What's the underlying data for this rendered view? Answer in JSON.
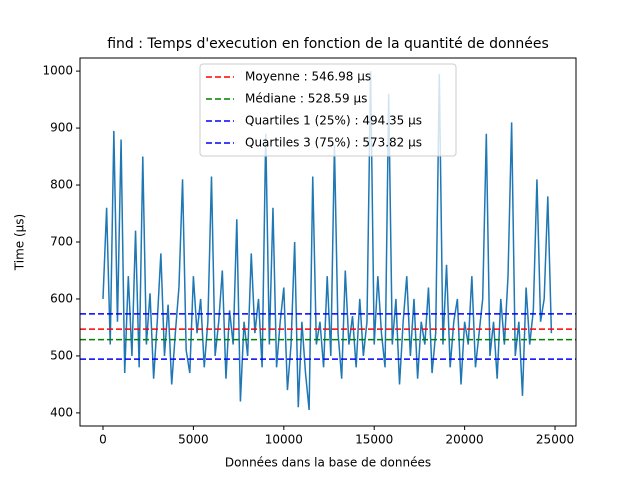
{
  "chart_data": {
    "type": "line",
    "title": "find : Temps d'execution en fonction de la quantité de données",
    "x_label": "Données dans la base de données",
    "y_label": "Time (µs)",
    "xlim": [
      -1272,
      26160
    ],
    "ylim": [
      377,
      1023
    ],
    "xticks": [
      0,
      5000,
      10000,
      15000,
      20000,
      25000
    ],
    "yticks": [
      400,
      500,
      600,
      700,
      800,
      900,
      1000
    ],
    "legend": "upper center",
    "series": [
      {
        "color": "#1f77b4",
        "x": [
          0,
          200,
          400,
          600,
          800,
          1000,
          1200,
          1400,
          1600,
          1800,
          2000,
          2200,
          2400,
          2600,
          2800,
          3000,
          3200,
          3400,
          3600,
          3800,
          4000,
          4200,
          4400,
          4600,
          4800,
          5000,
          5200,
          5400,
          5600,
          5800,
          6000,
          6200,
          6400,
          6600,
          6800,
          7000,
          7200,
          7400,
          7600,
          7800,
          8000,
          8200,
          8400,
          8600,
          8800,
          9000,
          9200,
          9400,
          9600,
          9800,
          10000,
          10200,
          10400,
          10600,
          10800,
          11000,
          11200,
          11400,
          11600,
          11800,
          12000,
          12200,
          12400,
          12600,
          12800,
          13000,
          13200,
          13400,
          13600,
          13800,
          14000,
          14200,
          14400,
          14600,
          14800,
          15000,
          15200,
          15400,
          15600,
          15800,
          16000,
          16200,
          16400,
          16600,
          16800,
          17000,
          17200,
          17400,
          17600,
          17800,
          18000,
          18200,
          18400,
          18600,
          18800,
          19000,
          19200,
          19400,
          19600,
          19800,
          20000,
          20200,
          20400,
          20600,
          20800,
          21000,
          21200,
          21400,
          21600,
          21800,
          22000,
          22200,
          22400,
          22600,
          22800,
          23000,
          23200,
          23400,
          23600,
          23800,
          24000,
          24200,
          24400,
          24600,
          24800
        ],
        "values": [
          600,
          760,
          520,
          895,
          560,
          880,
          470,
          640,
          500,
          720,
          480,
          850,
          520,
          610,
          460,
          560,
          680,
          500,
          590,
          450,
          540,
          620,
          810,
          510,
          470,
          640,
          540,
          600,
          480,
          560,
          815,
          500,
          560,
          650,
          460,
          580,
          520,
          740,
          420,
          560,
          500,
          680,
          540,
          600,
          480,
          890,
          520,
          760,
          480,
          560,
          620,
          440,
          520,
          700,
          410,
          560,
          470,
          405,
          815,
          520,
          560,
          480,
          640,
          500,
          870,
          540,
          460,
          650,
          520,
          570,
          480,
          600,
          500,
          560,
          1000,
          520,
          640,
          540,
          480,
          960,
          520,
          600,
          450,
          560,
          640,
          500,
          600,
          460,
          560,
          520,
          620,
          470,
          540,
          995,
          520,
          660,
          480,
          560,
          600,
          450,
          560,
          520,
          640,
          480,
          540,
          600,
          890,
          500,
          560,
          460,
          600,
          520,
          640,
          910,
          500,
          560,
          430,
          620,
          520,
          580,
          810,
          560,
          600,
          780,
          540
        ]
      }
    ],
    "hlines": [
      {
        "name": "Moyenne : 546.98 µs",
        "value": 546.98,
        "color": "#ff0000"
      },
      {
        "name": "Médiane : 528.59 µs",
        "value": 528.59,
        "color": "#008000"
      },
      {
        "name": "Quartiles 1 (25%) : 494.35 µs",
        "value": 494.35,
        "color": "#0000ff"
      },
      {
        "name": "Quartiles 3 (75%) : 573.82 µs",
        "value": 573.82,
        "color": "#0000ff"
      }
    ]
  }
}
